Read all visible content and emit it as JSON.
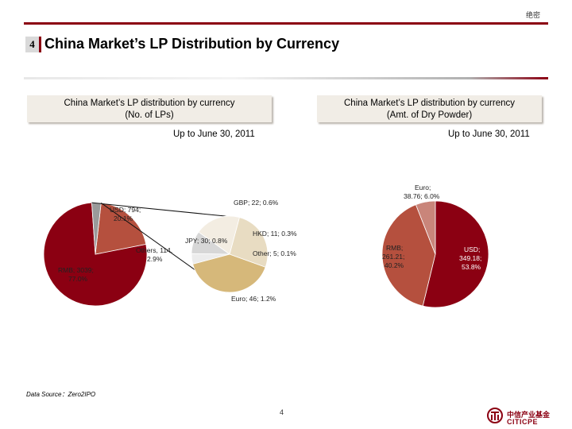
{
  "confidential": "绝密",
  "section_number": "4",
  "title": "China Market’s LP Distribution by Currency",
  "left_panel": {
    "subheading_line1": "China Market’s LP distribution by currency",
    "subheading_line2": "(No. of LPs)",
    "date": "Up to June 30, 2011"
  },
  "right_panel": {
    "subheading_line1": "China Market’s LP distribution by currency",
    "subheading_line2": "(Amt. of Dry Powder)",
    "date": "Up to June 30, 2011"
  },
  "labels": {
    "usd_a": "USD; 794;",
    "usd_b": "20.1%",
    "rmb_a": "RMB; 3039;",
    "rmb_b": "77.0%",
    "others_a": "Others, 114,",
    "others_b": "2.9%",
    "gbp": "GBP; 22; 0.6%",
    "hkd": "HKD; 11; 0.3%",
    "jpy": "JPY; 30; 0.8%",
    "other": "Other; 5; 0.1%",
    "euro": "Euro; 46; 1.2%",
    "r_euro_a": "Euro;",
    "r_euro_b": "38.76; 6.0%",
    "r_rmb_a": "RMB;",
    "r_rmb_b": "261.21;",
    "r_rmb_c": "40.2%",
    "r_usd_a": "USD;",
    "r_usd_b": "349.18;",
    "r_usd_c": "53.8%"
  },
  "chart_data": [
    {
      "type": "pie",
      "title": "China Market’s LP distribution by currency (No. of LPs)",
      "slices": [
        {
          "name": "RMB",
          "value": 3039,
          "percent": 77.0,
          "color": "#8b0012"
        },
        {
          "name": "USD",
          "value": 794,
          "percent": 20.1,
          "color": "#b5503e"
        },
        {
          "name": "Others",
          "value": 114,
          "percent": 2.9,
          "color": "#9a9a9a"
        }
      ],
      "breakout": [
        {
          "name": "Euro",
          "value": 46,
          "percent": 1.2,
          "color": "#d6b87a"
        },
        {
          "name": "JPY",
          "value": 30,
          "percent": 0.8,
          "color": "#e8dcc2"
        },
        {
          "name": "GBP",
          "value": 22,
          "percent": 0.6,
          "color": "#f3ede2"
        },
        {
          "name": "HKD",
          "value": 11,
          "percent": 0.3,
          "color": "#d7d7d7"
        },
        {
          "name": "Other",
          "value": 5,
          "percent": 0.1,
          "color": "#ececec"
        }
      ]
    },
    {
      "type": "pie",
      "title": "China Market’s LP distribution by currency (Amt. of Dry Powder)",
      "slices": [
        {
          "name": "USD",
          "value": 349.18,
          "percent": 53.8,
          "color": "#8b0012"
        },
        {
          "name": "RMB",
          "value": 261.21,
          "percent": 40.2,
          "color": "#b5503e"
        },
        {
          "name": "Euro",
          "value": 38.76,
          "percent": 6.0,
          "color": "#c9857a"
        }
      ]
    }
  ],
  "source": "Data Source：Zero2IPO",
  "page_number": "4",
  "logo": {
    "cn": "中信产业基金",
    "en": "CITICPE",
    "color": "#8b0012"
  }
}
